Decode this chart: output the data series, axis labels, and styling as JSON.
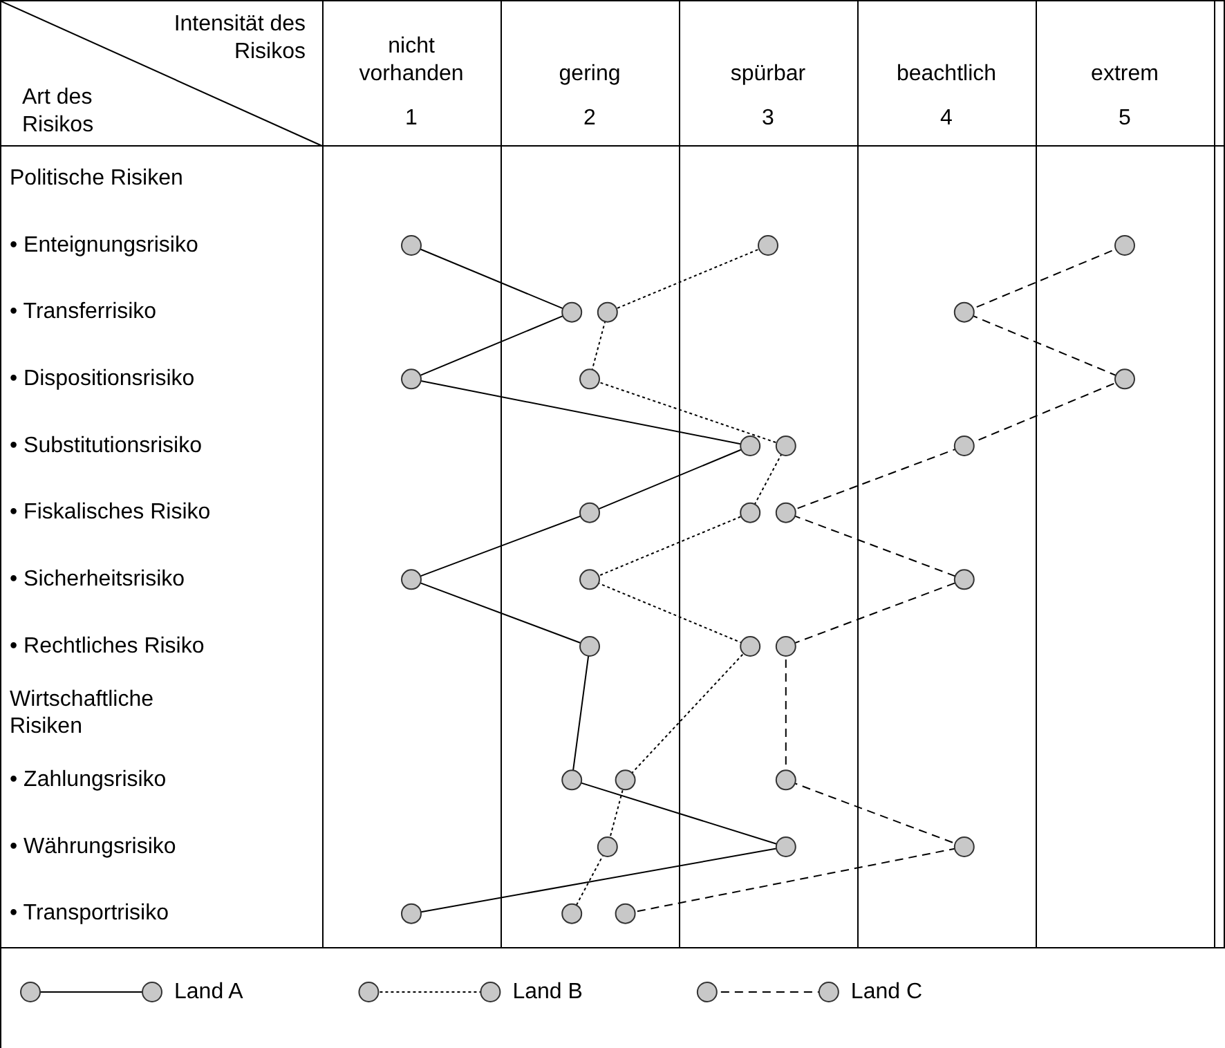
{
  "chart_data": {
    "type": "line",
    "orientation": "horizontal",
    "xlabel": "Intensität des Risikos",
    "ylabel": "Art des Risikos",
    "categories": [
      "Politische Risiken",
      "• Enteignungsrisiko",
      "• Transferrisiko",
      "• Dispositionsrisiko",
      "• Substitutionsrisiko",
      "• Fiskalisches Risiko",
      "• Sicherheitsrisiko",
      "• Rechtliches Risiko",
      "Wirtschaftliche Risiken",
      "• Zahlungsrisiko",
      "• Währungsrisiko",
      "• Transportrisiko"
    ],
    "xlim": [
      0.5,
      5.5
    ],
    "xticks": [
      1,
      2,
      3,
      4,
      5
    ],
    "annotations": [
      "nicht vorhanden",
      "gering",
      "spürbar",
      "beachtlich",
      "extrem"
    ],
    "grid": "x",
    "legend": "bottom",
    "marker": "circle",
    "series": [
      {
        "name": "Land A",
        "color": "#000000",
        "line_style": "solid",
        "values": [
          null,
          1,
          1.9,
          1,
          2.9,
          2,
          1,
          2,
          null,
          1.9,
          3.1,
          1
        ]
      },
      {
        "name": "Land B",
        "color": "#000000",
        "line_style": "dotted",
        "values": [
          null,
          3,
          2.1,
          2,
          3.1,
          2.9,
          2,
          2.9,
          null,
          2.2,
          2.1,
          1.9
        ]
      },
      {
        "name": "Land C",
        "color": "#000000",
        "line_style": "dashed",
        "values": [
          null,
          5,
          4.1,
          5,
          4.1,
          3.1,
          4.1,
          3.1,
          null,
          3.1,
          4.1,
          2.2
        ]
      }
    ]
  }
}
